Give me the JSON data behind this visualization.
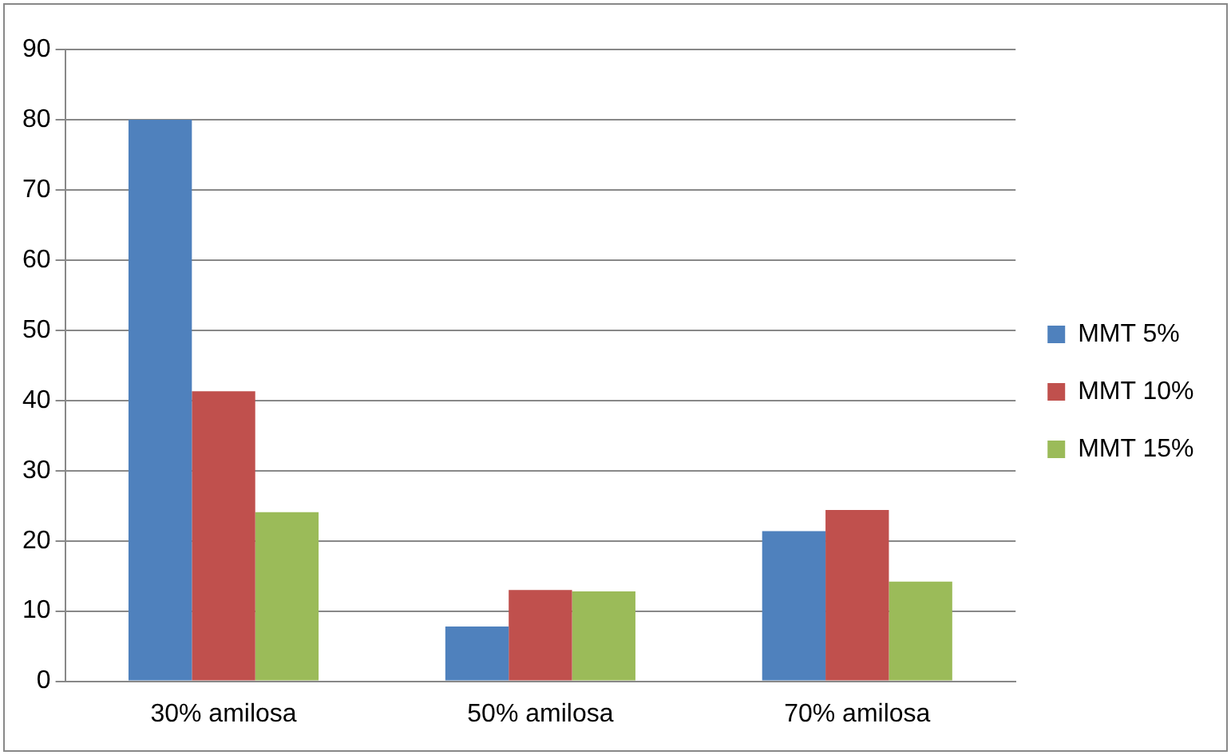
{
  "chart_data": {
    "type": "bar",
    "categories": [
      "30% amilosa",
      "50% amilosa",
      "70% amilosa"
    ],
    "series": [
      {
        "name": "MMT 5%",
        "color": "#4f81bd",
        "values": [
          80,
          7.8,
          21.4
        ]
      },
      {
        "name": "MMT 10%",
        "color": "#c0504d",
        "values": [
          41.3,
          13,
          24.4
        ]
      },
      {
        "name": "MMT 15%",
        "color": "#9bbb59",
        "values": [
          24.1,
          12.8,
          14.2
        ]
      }
    ],
    "ylim": [
      0,
      90
    ],
    "yticks": [
      0,
      10,
      20,
      30,
      40,
      50,
      60,
      70,
      80,
      90
    ],
    "grid": "y",
    "legend": "right"
  }
}
